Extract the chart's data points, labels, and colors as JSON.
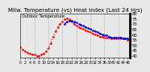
{
  "title": "Milw. Temperature (vs) Heat Index (Last 24 Hrs)",
  "legend_text": "Outdoor Temperature",
  "bg_color": "#e8e8e8",
  "plot_bg": "#e8e8e8",
  "grid_color": "#999999",
  "temp_color": "#ff0000",
  "heat_color": "#0000cc",
  "temp_x": [
    0,
    1,
    2,
    3,
    4,
    5,
    6,
    7,
    8,
    9,
    10,
    11,
    12,
    13,
    14,
    15,
    16,
    17,
    18,
    19,
    20,
    21,
    22,
    23,
    24,
    25,
    26,
    27,
    28,
    29,
    30,
    31,
    32,
    33,
    34,
    35,
    36,
    37,
    38,
    39,
    40,
    41,
    42,
    43,
    44,
    45,
    46,
    47
  ],
  "temp_y": [
    48,
    46,
    44,
    43,
    42,
    41,
    41,
    40,
    40,
    41,
    42,
    44,
    47,
    52,
    58,
    63,
    67,
    70,
    72,
    74,
    75,
    74,
    72,
    70,
    68,
    67,
    66,
    65,
    64,
    63,
    62,
    61,
    60,
    59,
    58,
    58,
    57,
    57,
    57,
    56,
    56,
    56,
    56,
    56,
    56,
    56,
    55,
    55
  ],
  "heat_x": [
    19,
    20,
    21,
    22,
    23,
    24,
    25,
    26,
    27,
    28,
    29,
    30,
    31,
    32,
    33,
    34,
    35,
    36,
    37,
    38,
    39,
    40,
    41,
    42,
    43,
    44,
    45,
    46,
    47
  ],
  "heat_y": [
    70,
    72,
    73,
    73,
    72,
    71,
    70,
    69,
    68,
    67,
    66,
    65,
    64,
    63,
    62,
    61,
    60,
    59,
    59,
    58,
    57,
    57,
    57,
    57,
    57,
    56,
    56,
    56,
    55
  ],
  "ylim_min": 38,
  "ylim_max": 80,
  "yticks": [
    40,
    45,
    50,
    55,
    60,
    65,
    70,
    75,
    80
  ],
  "gridlines_x": [
    6,
    12,
    18,
    24,
    30,
    36,
    42
  ],
  "title_fontsize": 5.0,
  "tick_fontsize": 3.8,
  "linewidth": 0.9,
  "markersize": 1.8
}
